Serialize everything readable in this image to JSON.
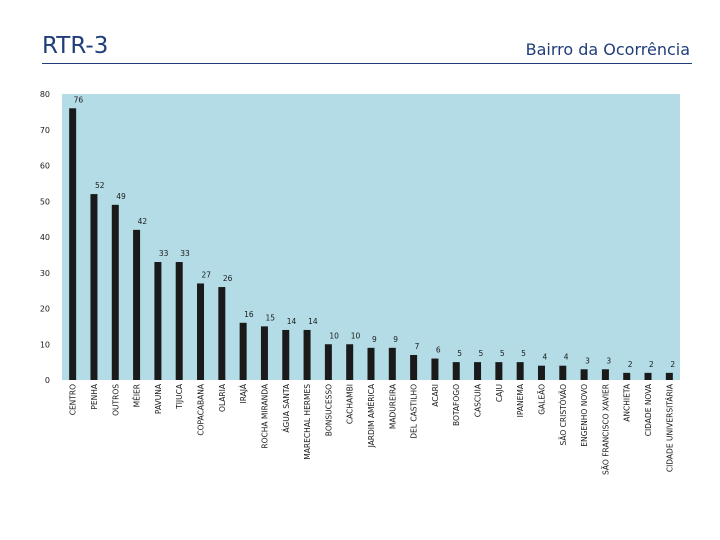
{
  "header": {
    "title": "RTR-3",
    "subtitle": "Bairro da Ocorrência"
  },
  "chart_data": {
    "type": "bar",
    "categories": [
      "CENTRO",
      "PENHA",
      "OUTROS",
      "MÉIER",
      "PAVUNA",
      "TIJUCA",
      "COPACABANA",
      "OLARIA",
      "IRAJÁ",
      "ROCHA MIRANDA",
      "ÁGUA SANTA",
      "MARECHAL HERMES",
      "BONSUCESSO",
      "CACHAMBI",
      "JARDIM AMÉRICA",
      "MADUREIRA",
      "DEL CASTILHO",
      "ACARI",
      "BOTAFOGO",
      "CASCUIA",
      "CAJU",
      "IPANEMA",
      "GALEÃO",
      "SÃO CRISTÓVÃO",
      "ENGENHO NOVO",
      "SÃO FRANCISCO XAVIER",
      "ANCHIETA",
      "CIDADE NOVA",
      "CIDADE UNIVERSITÁRIA"
    ],
    "values": [
      76,
      52,
      49,
      42,
      33,
      33,
      27,
      26,
      16,
      15,
      14,
      14,
      10,
      10,
      9,
      9,
      7,
      6,
      5,
      5,
      5,
      5,
      4,
      4,
      3,
      3,
      2,
      2,
      2
    ],
    "ylim": [
      0,
      80
    ],
    "yticks": [
      0,
      10,
      20,
      30,
      40,
      50,
      60,
      70,
      80
    ],
    "grid": false,
    "data_labels": true,
    "colors": {
      "plot_bg": "#b4dce6",
      "bar": "#1a1a1a",
      "text": "#1a1a1a"
    }
  }
}
